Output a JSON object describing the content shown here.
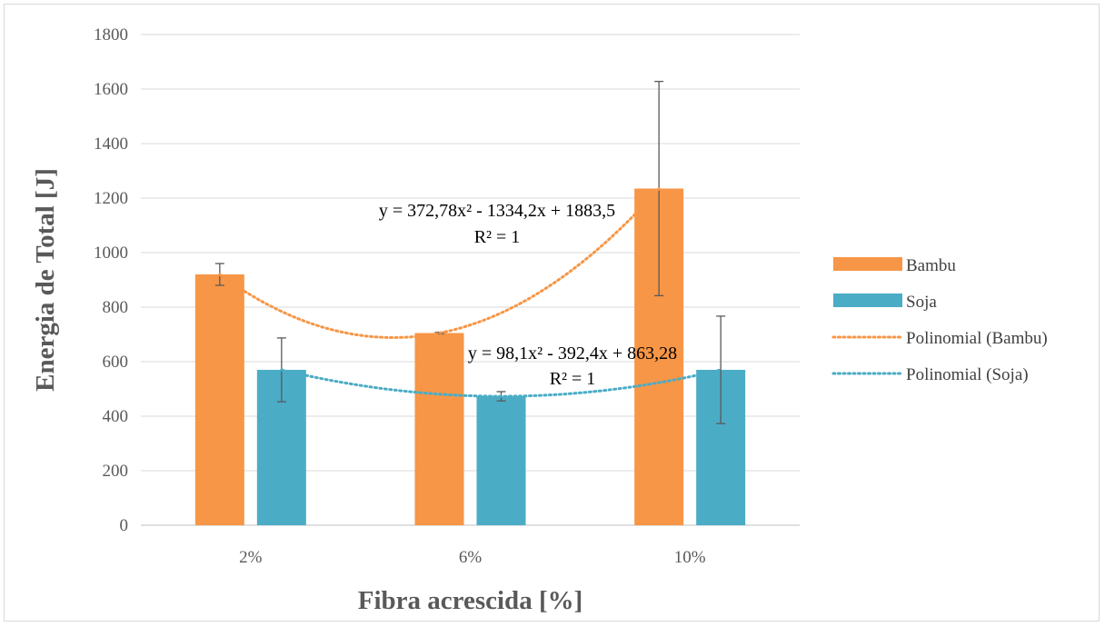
{
  "chart_data": {
    "type": "bar",
    "categories": [
      "2%",
      "6%",
      "10%"
    ],
    "series": [
      {
        "name": "Bambu",
        "color": "#F79646",
        "values": [
          920,
          705,
          1235
        ],
        "error": [
          40,
          3,
          393
        ]
      },
      {
        "name": "Soja",
        "color": "#4BACC6",
        "values": [
          570,
          473,
          570
        ],
        "error": [
          117,
          17,
          197
        ]
      }
    ],
    "trendlines": [
      {
        "name": "Polinomial (Bambu)",
        "series": "Bambu",
        "type": "polynomial",
        "order": 2,
        "color": "#F79646",
        "equation": "y = 372,78x² - 1334,2x + 1883,5",
        "r2": "R² = 1"
      },
      {
        "name": "Polinomial (Soja)",
        "series": "Soja",
        "type": "polynomial",
        "order": 2,
        "color": "#4BACC6",
        "equation": "y = 98,1x² - 392,4x + 863,28",
        "r2": "R² = 1"
      }
    ],
    "xlabel": "Fibra acrescida [%]",
    "ylabel": "Energia de Total [J]",
    "ylim": [
      0,
      1800
    ],
    "yticks": [
      0,
      200,
      400,
      600,
      800,
      1000,
      1200,
      1400,
      1600,
      1800
    ],
    "grid": true,
    "legend": "right"
  }
}
